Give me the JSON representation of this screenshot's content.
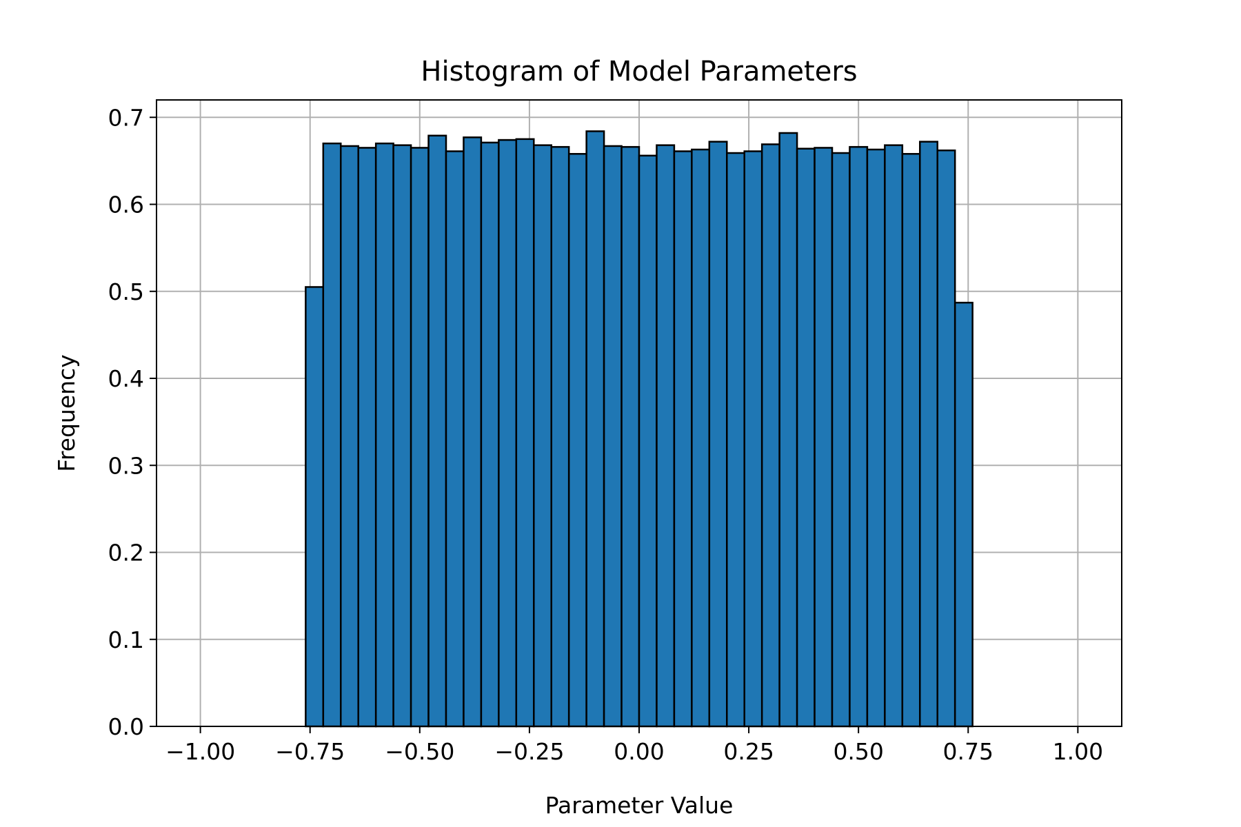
{
  "chart_data": {
    "type": "bar",
    "title": "Histogram of Model Parameters",
    "xlabel": "Parameter Value",
    "ylabel": "Frequency",
    "xlim": [
      -1.1,
      1.1
    ],
    "ylim": [
      0,
      0.72
    ],
    "grid": true,
    "bar_color": "#1f77b4",
    "edge_color": "#000000",
    "bin_start": -0.76,
    "bin_width": 0.04,
    "values": [
      0.505,
      0.67,
      0.667,
      0.665,
      0.67,
      0.668,
      0.665,
      0.679,
      0.661,
      0.677,
      0.671,
      0.674,
      0.675,
      0.668,
      0.666,
      0.658,
      0.684,
      0.667,
      0.666,
      0.656,
      0.668,
      0.661,
      0.663,
      0.672,
      0.659,
      0.661,
      0.669,
      0.682,
      0.664,
      0.665,
      0.659,
      0.666,
      0.663,
      0.668,
      0.658,
      0.672,
      0.662,
      0.487
    ],
    "x_ticks": [
      -1.0,
      -0.75,
      -0.5,
      -0.25,
      0.0,
      0.25,
      0.5,
      0.75,
      1.0
    ],
    "x_tick_labels": [
      "−1.00",
      "−0.75",
      "−0.50",
      "−0.25",
      "0.00",
      "0.25",
      "0.50",
      "0.75",
      "1.00"
    ],
    "y_ticks": [
      0.0,
      0.1,
      0.2,
      0.3,
      0.4,
      0.5,
      0.6,
      0.7
    ],
    "y_tick_labels": [
      "0.0",
      "0.1",
      "0.2",
      "0.3",
      "0.4",
      "0.5",
      "0.6",
      "0.7"
    ]
  }
}
